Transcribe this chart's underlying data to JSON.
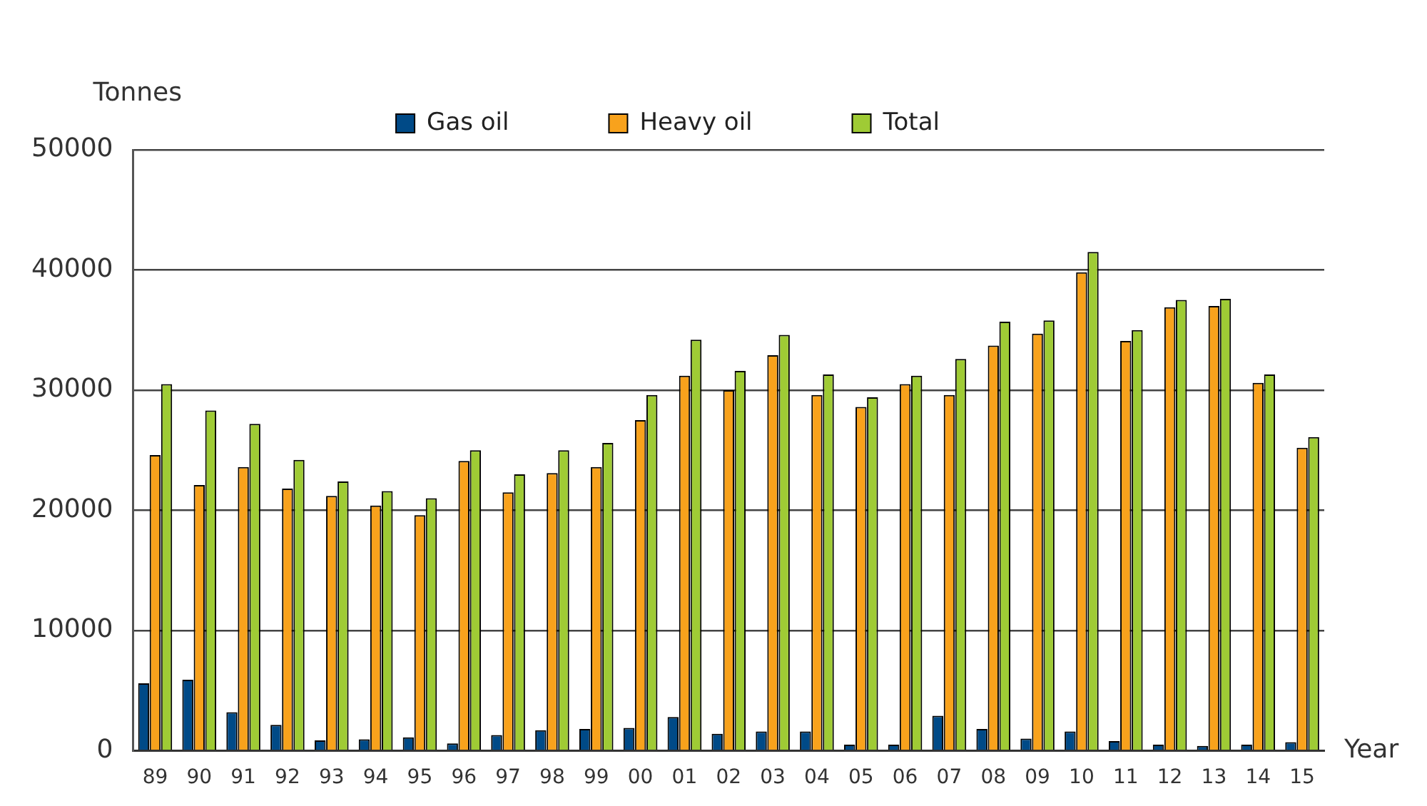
{
  "chart_data": {
    "type": "bar",
    "xlabel": "Year",
    "ylabel": "Tonnes",
    "categories": [
      "89",
      "90",
      "91",
      "92",
      "93",
      "94",
      "95",
      "96",
      "97",
      "98",
      "99",
      "00",
      "01",
      "02",
      "03",
      "04",
      "05",
      "06",
      "07",
      "08",
      "09",
      "10",
      "11",
      "12",
      "13",
      "14",
      "15"
    ],
    "series": [
      {
        "name": "Gas oil",
        "color": "#004a87",
        "values": [
          5600,
          5900,
          3200,
          2150,
          850,
          950,
          1100,
          600,
          1300,
          1700,
          1800,
          1900,
          2800,
          1400,
          1600,
          1600,
          500,
          500,
          2900,
          1800,
          1000,
          1600,
          800,
          500,
          400,
          500,
          700
        ]
      },
      {
        "name": "Heavy oil",
        "color": "#f8a21c",
        "values": [
          24600,
          22100,
          23600,
          21800,
          21200,
          20400,
          19600,
          24100,
          21500,
          23100,
          23600,
          27500,
          31200,
          30000,
          32900,
          29600,
          28600,
          30500,
          29600,
          33700,
          34700,
          39800,
          34100,
          36900,
          37000,
          30600,
          25200
        ]
      },
      {
        "name": "Total",
        "color": "#9fcb35",
        "values": [
          30500,
          28300,
          27200,
          24200,
          22400,
          21600,
          21000,
          25000,
          23000,
          25000,
          25600,
          29600,
          34200,
          31600,
          34600,
          31300,
          29400,
          31200,
          32600,
          35700,
          35800,
          41500,
          35000,
          37500,
          37600,
          31300,
          26100
        ]
      }
    ],
    "ylim": [
      0,
      50000
    ],
    "yticks": [
      0,
      10000,
      20000,
      30000,
      40000,
      50000
    ],
    "grid": "y",
    "legend": "top"
  }
}
